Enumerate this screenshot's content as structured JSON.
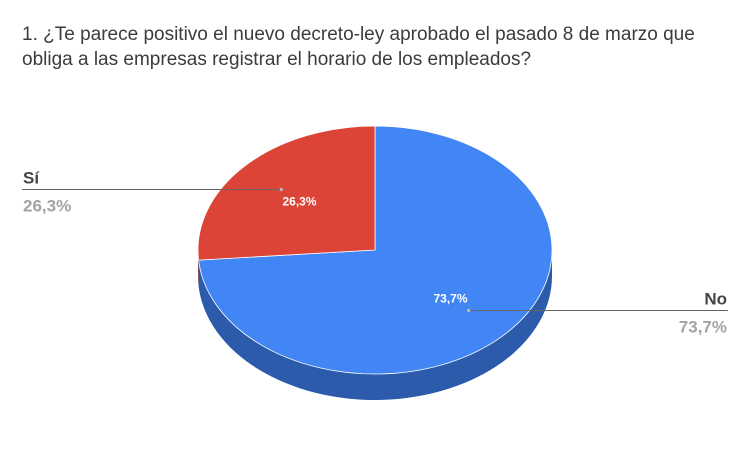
{
  "chart_data": {
    "type": "pie",
    "title": "1. ¿Te parece positivo el nuevo decreto-ley aprobado el pasado 8 de marzo que obliga a las empresas registrar el horario de los empleados?",
    "slices": [
      {
        "label": "No",
        "value": 73.7,
        "display": "73,7%",
        "color": "#4285f4",
        "side_color": "#2d5bac"
      },
      {
        "label": "Sí",
        "value": 26.3,
        "display": "26,3%",
        "color": "#db4437",
        "side_color": "#a12f26"
      }
    ],
    "legend": "callout-labels",
    "style": "3d"
  }
}
